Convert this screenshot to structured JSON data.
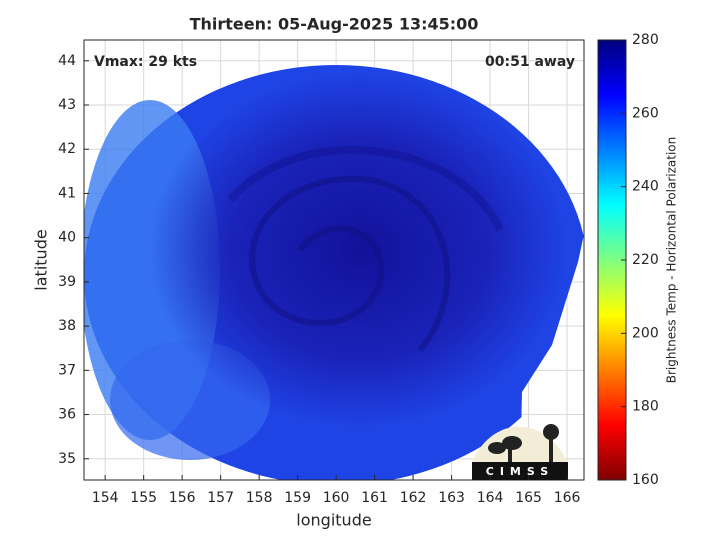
{
  "chart_data": {
    "type": "map",
    "title": "Thirteen: 05-Aug-2025 13:45:00",
    "annotations": [
      "Vmax: 29 kts",
      "00:51 away"
    ],
    "xlabel": "longitude",
    "ylabel": "latitude",
    "xlim": [
      153.45,
      166.44
    ],
    "ylim": [
      34.52,
      44.47
    ],
    "xticks": [
      154,
      155,
      156,
      157,
      158,
      159,
      160,
      161,
      162,
      163,
      164,
      165,
      166
    ],
    "yticks": [
      35,
      36,
      37,
      38,
      39,
      40,
      41,
      42,
      43,
      44
    ],
    "grid": true,
    "colorbar": {
      "label": "Brightness Temp - Horizontal Polarization",
      "colormap": "jet_r",
      "lim": [
        160,
        280
      ],
      "ticks": [
        160,
        180,
        200,
        220,
        240,
        260,
        280
      ]
    }
  },
  "logo": {
    "text": "CIMSS"
  }
}
